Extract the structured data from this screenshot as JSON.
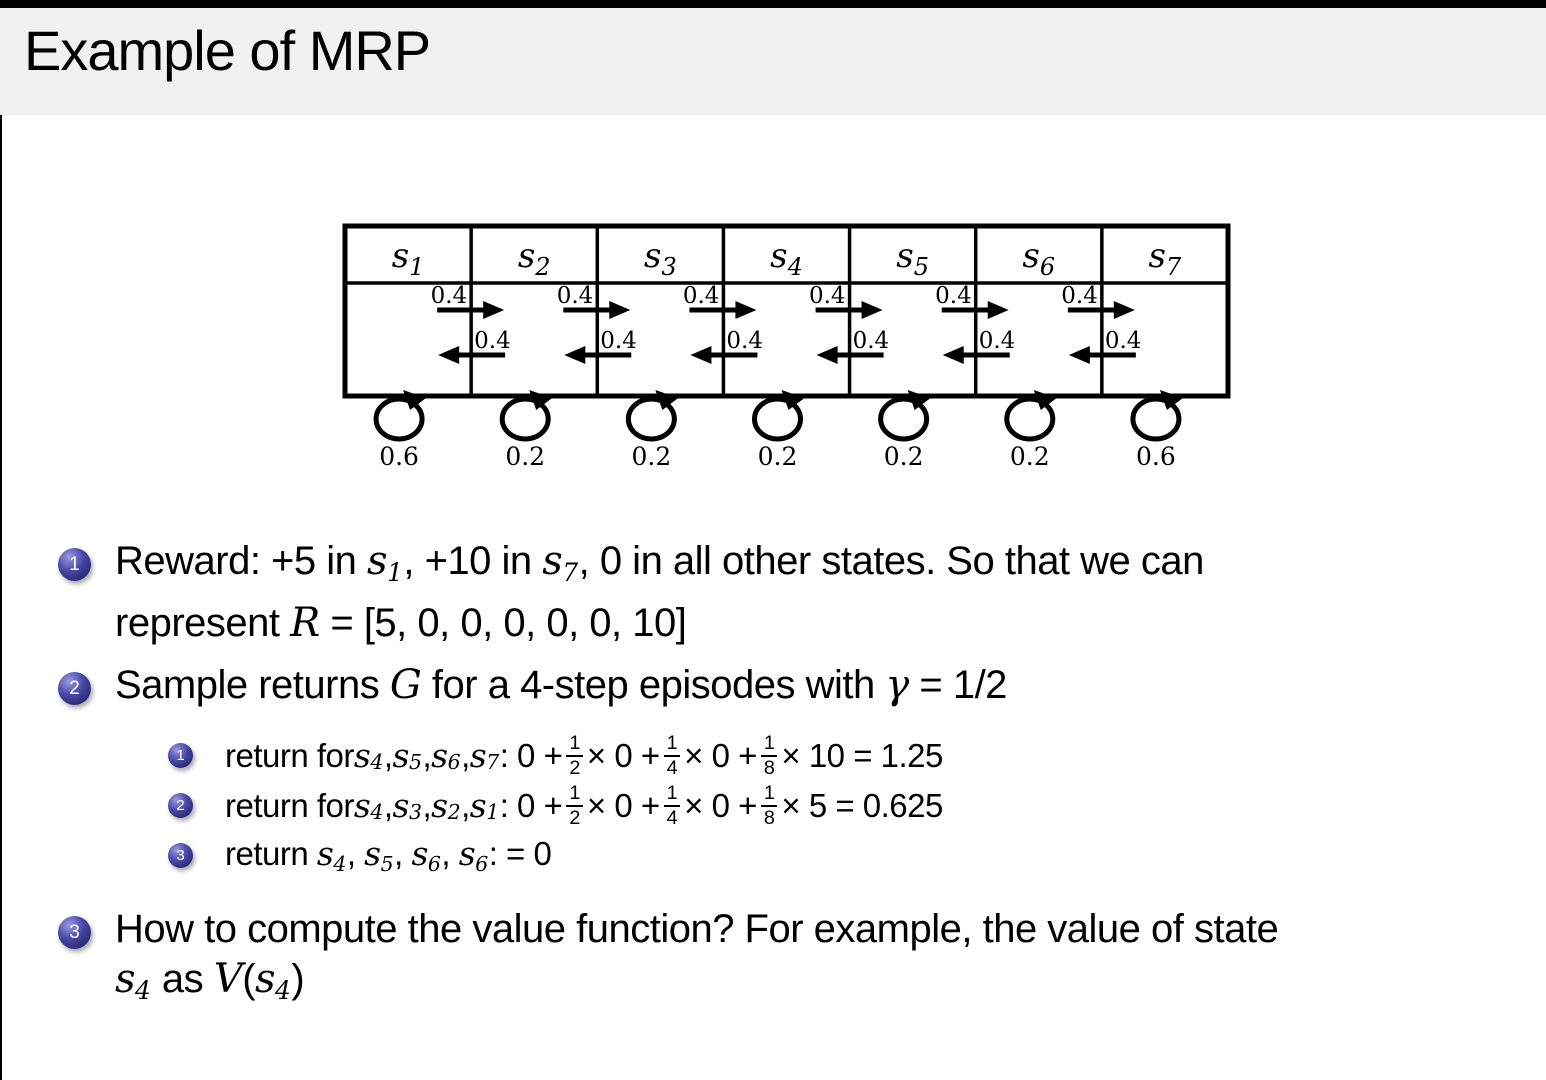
{
  "title": "Example of MRP",
  "colors": {
    "top_bar": "#000000",
    "header_bg": "#f1f1f0",
    "ball": "#32329a",
    "text": "#000000"
  },
  "diagram": {
    "type": "markov-reward-process-chain",
    "states": [
      {
        "label": "s",
        "sub": "1",
        "self_loop": "0.6"
      },
      {
        "label": "s",
        "sub": "2",
        "self_loop": "0.2"
      },
      {
        "label": "s",
        "sub": "3",
        "self_loop": "0.2"
      },
      {
        "label": "s",
        "sub": "4",
        "self_loop": "0.2"
      },
      {
        "label": "s",
        "sub": "5",
        "self_loop": "0.2"
      },
      {
        "label": "s",
        "sub": "6",
        "self_loop": "0.2"
      },
      {
        "label": "s",
        "sub": "7",
        "self_loop": "0.6"
      }
    ],
    "transition_right": "0.4",
    "transition_left": "0.4"
  },
  "bullets": [
    {
      "marker": "1",
      "lines": [
        [
          {
            "t": "tx",
            "v": "Reward: +5 in "
          },
          {
            "t": "it",
            "v": "s"
          },
          {
            "t": "sub",
            "v": "1"
          },
          {
            "t": "tx",
            "v": ", +10 in "
          },
          {
            "t": "it",
            "v": "s"
          },
          {
            "t": "sub",
            "v": "7"
          },
          {
            "t": "tx",
            "v": ", 0 in all other states. So that we can"
          }
        ],
        [
          {
            "t": "tx",
            "v": "represent "
          },
          {
            "t": "it",
            "v": "R"
          },
          {
            "t": "tx",
            "v": " = [5, 0, 0, 0, 0, 0, 10]"
          }
        ]
      ]
    },
    {
      "marker": "2",
      "lines": [
        [
          {
            "t": "tx",
            "v": "Sample returns "
          },
          {
            "t": "it",
            "v": "G"
          },
          {
            "t": "tx",
            "v": " for a 4-step episodes with "
          },
          {
            "t": "it",
            "v": "γ"
          },
          {
            "t": "tx",
            "v": " = 1/2"
          }
        ]
      ]
    },
    {
      "marker": "1",
      "lines": [
        [
          {
            "t": "tx",
            "v": "return for "
          },
          {
            "t": "it",
            "v": "s"
          },
          {
            "t": "sub",
            "v": "4"
          },
          {
            "t": "tx",
            "v": ", "
          },
          {
            "t": "it",
            "v": "s"
          },
          {
            "t": "sub",
            "v": "5"
          },
          {
            "t": "tx",
            "v": ", "
          },
          {
            "t": "it",
            "v": "s"
          },
          {
            "t": "sub",
            "v": "6"
          },
          {
            "t": "tx",
            "v": ", "
          },
          {
            "t": "it",
            "v": "s"
          },
          {
            "t": "sub",
            "v": "7"
          },
          {
            "t": "tx",
            "v": " : 0 + "
          },
          {
            "t": "fr",
            "n": "1",
            "d": "2"
          },
          {
            "t": "tx",
            "v": " × 0 + "
          },
          {
            "t": "fr",
            "n": "1",
            "d": "4"
          },
          {
            "t": "tx",
            "v": " × 0 + "
          },
          {
            "t": "fr",
            "n": "1",
            "d": "8"
          },
          {
            "t": "tx",
            "v": " × 10 = 1.25"
          }
        ]
      ]
    },
    {
      "marker": "2",
      "lines": [
        [
          {
            "t": "tx",
            "v": "return for "
          },
          {
            "t": "it",
            "v": "s"
          },
          {
            "t": "sub",
            "v": "4"
          },
          {
            "t": "tx",
            "v": ", "
          },
          {
            "t": "it",
            "v": "s"
          },
          {
            "t": "sub",
            "v": "3"
          },
          {
            "t": "tx",
            "v": ", "
          },
          {
            "t": "it",
            "v": "s"
          },
          {
            "t": "sub",
            "v": "2"
          },
          {
            "t": "tx",
            "v": ", "
          },
          {
            "t": "it",
            "v": "s"
          },
          {
            "t": "sub",
            "v": "1"
          },
          {
            "t": "tx",
            "v": " : 0 + "
          },
          {
            "t": "fr",
            "n": "1",
            "d": "2"
          },
          {
            "t": "tx",
            "v": " × 0 + "
          },
          {
            "t": "fr",
            "n": "1",
            "d": "4"
          },
          {
            "t": "tx",
            "v": " × 0 + "
          },
          {
            "t": "fr",
            "n": "1",
            "d": "8"
          },
          {
            "t": "tx",
            "v": " × 5 = 0.625"
          }
        ]
      ]
    },
    {
      "marker": "3",
      "lines": [
        [
          {
            "t": "tx",
            "v": "return "
          },
          {
            "t": "it",
            "v": "s"
          },
          {
            "t": "sub",
            "v": "4"
          },
          {
            "t": "tx",
            "v": ", "
          },
          {
            "t": "it",
            "v": "s"
          },
          {
            "t": "sub",
            "v": "5"
          },
          {
            "t": "tx",
            "v": ", "
          },
          {
            "t": "it",
            "v": "s"
          },
          {
            "t": "sub",
            "v": "6"
          },
          {
            "t": "tx",
            "v": ", "
          },
          {
            "t": "it",
            "v": "s"
          },
          {
            "t": "sub",
            "v": "6"
          },
          {
            "t": "tx",
            "v": ": = 0"
          }
        ]
      ]
    },
    {
      "marker": "3",
      "lines": [
        [
          {
            "t": "tx",
            "v": "How to compute the value function? For example, the value of state"
          }
        ],
        [
          {
            "t": "it",
            "v": "s"
          },
          {
            "t": "sub",
            "v": "4"
          },
          {
            "t": "tx",
            "v": " as "
          },
          {
            "t": "it",
            "v": "V"
          },
          {
            "t": "tx",
            "v": "("
          },
          {
            "t": "it",
            "v": "s"
          },
          {
            "t": "sub",
            "v": "4"
          },
          {
            "t": "tx",
            "v": ")"
          }
        ]
      ]
    }
  ]
}
